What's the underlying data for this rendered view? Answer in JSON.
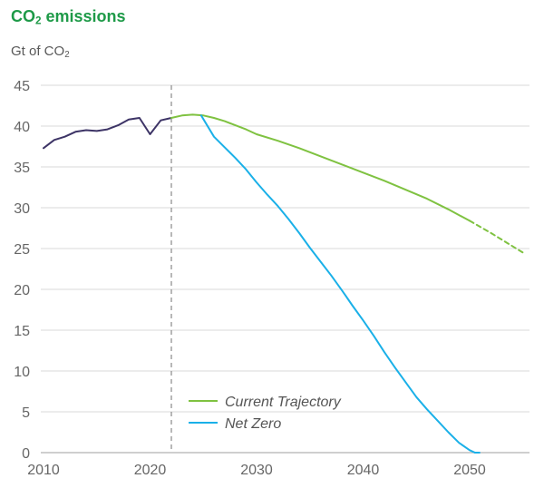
{
  "header": {
    "title_prefix": "CO",
    "title_sub": "2",
    "title_suffix": " emissions",
    "unit_prefix": "Gt of CO",
    "unit_sub": "2"
  },
  "colors": {
    "title": "#1e9a48",
    "historical": "#3d3466",
    "current": "#7fc241",
    "netzero": "#1ab0e8",
    "grid": "#d9d9d9",
    "divider": "#888888"
  },
  "chart_data": {
    "type": "line",
    "title": "CO2 emissions",
    "ylabel": "Gt of CO2",
    "xlabel": "",
    "xlim": [
      2010,
      2056
    ],
    "ylim": [
      0,
      45
    ],
    "x_ticks": [
      2010,
      2020,
      2030,
      2040,
      2050
    ],
    "y_ticks": [
      0,
      5,
      10,
      15,
      20,
      25,
      30,
      35,
      40,
      45
    ],
    "divider_x": 2022,
    "legend_position": "bottom-center",
    "series": [
      {
        "name": "Historical",
        "legend": false,
        "style": "solid",
        "color": "#3d3466",
        "x": [
          2010,
          2011,
          2012,
          2013,
          2014,
          2015,
          2016,
          2017,
          2018,
          2019,
          2020,
          2021,
          2022
        ],
        "y": [
          37.3,
          38.3,
          38.7,
          39.3,
          39.5,
          39.4,
          39.6,
          40.1,
          40.8,
          41.0,
          39.0,
          40.7,
          41.0
        ]
      },
      {
        "name": "Current Trajectory",
        "legend": true,
        "style": "solid",
        "color": "#7fc241",
        "x": [
          2022,
          2023,
          2024,
          2025,
          2026,
          2027,
          2028,
          2029,
          2030,
          2032,
          2034,
          2036,
          2038,
          2040,
          2042,
          2044,
          2046,
          2048,
          2050
        ],
        "y": [
          41.0,
          41.3,
          41.4,
          41.3,
          41.0,
          40.6,
          40.1,
          39.6,
          39.0,
          38.2,
          37.3,
          36.3,
          35.3,
          34.3,
          33.3,
          32.2,
          31.1,
          29.8,
          28.4
        ]
      },
      {
        "name": "Current Trajectory (extension)",
        "legend": false,
        "style": "dashed",
        "color": "#7fc241",
        "x": [
          2050,
          2052,
          2054,
          2055
        ],
        "y": [
          28.4,
          26.9,
          25.3,
          24.5
        ]
      },
      {
        "name": "Net Zero",
        "legend": true,
        "style": "solid",
        "color": "#1ab0e8",
        "x": [
          2024.8,
          2026,
          2027,
          2028,
          2029,
          2030,
          2031,
          2032,
          2033,
          2034,
          2035,
          2036,
          2037,
          2038,
          2039,
          2040,
          2041,
          2042,
          2043,
          2044,
          2045,
          2046,
          2047,
          2048,
          2049,
          2050,
          2050.5
        ],
        "y": [
          41.3,
          38.7,
          37.4,
          36.1,
          34.7,
          33.1,
          31.6,
          30.2,
          28.6,
          26.9,
          25.1,
          23.4,
          21.7,
          19.9,
          18.0,
          16.2,
          14.3,
          12.3,
          10.4,
          8.6,
          6.8,
          5.3,
          3.9,
          2.5,
          1.2,
          0.3,
          0
        ]
      },
      {
        "name": "Net Zero (extension)",
        "legend": false,
        "style": "dashed",
        "color": "#1ab0e8",
        "x": [
          2050.5,
          2051
        ],
        "y": [
          0,
          0
        ]
      }
    ]
  }
}
